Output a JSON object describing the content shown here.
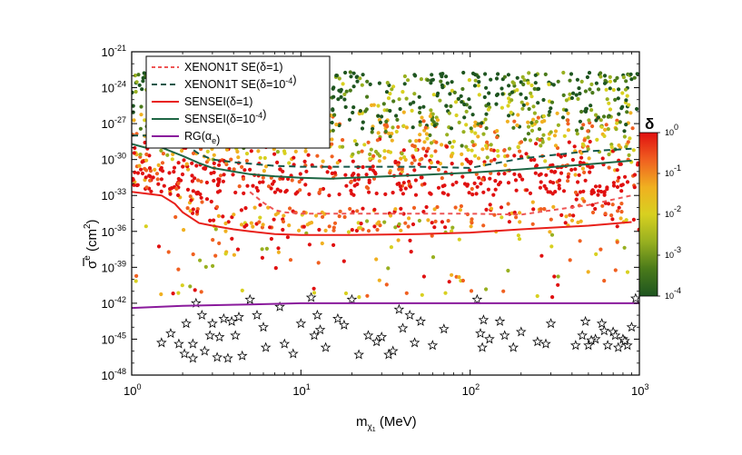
{
  "chart_data": {
    "type": "scatter",
    "title": "",
    "xlabel": {
      "base": "m",
      "sub": "χ",
      "subsub": "1",
      "unit": " (MeV)"
    },
    "ylabel": {
      "base": "σ",
      "sup": "e",
      "unit": " (cm",
      "unit_sup": "2",
      "close": ")"
    },
    "x_scale": "log",
    "y_scale": "log",
    "xlim": [
      1,
      1000
    ],
    "ylim": [
      1e-48,
      1e-21
    ],
    "x_ticks": [
      {
        "value": 1,
        "mant": "10",
        "exp": "0"
      },
      {
        "value": 10,
        "mant": "10",
        "exp": "1"
      },
      {
        "value": 100,
        "mant": "10",
        "exp": "2"
      },
      {
        "value": 1000,
        "mant": "10",
        "exp": "3"
      }
    ],
    "y_ticks": [
      {
        "value": 1e-21,
        "mant": "10",
        "exp": "-21"
      },
      {
        "value": 1e-24,
        "mant": "10",
        "exp": "-24"
      },
      {
        "value": 1e-27,
        "mant": "10",
        "exp": "-27"
      },
      {
        "value": 1e-30,
        "mant": "10",
        "exp": "-30"
      },
      {
        "value": 1e-33,
        "mant": "10",
        "exp": "-33"
      },
      {
        "value": 1e-36,
        "mant": "10",
        "exp": "-36"
      },
      {
        "value": 1e-39,
        "mant": "10",
        "exp": "-39"
      },
      {
        "value": 1e-42,
        "mant": "10",
        "exp": "-42"
      },
      {
        "value": 1e-45,
        "mant": "10",
        "exp": "-45"
      },
      {
        "value": 1e-48,
        "mant": "10",
        "exp": "-48"
      }
    ],
    "legend_position": "top-left",
    "series": [
      {
        "name": "XENON1T SE(δ=1)",
        "label_parts": [
          {
            "t": "XENON1T SE(δ=1)"
          }
        ],
        "color": "#ee5555",
        "style": "dashed",
        "x": [
          5,
          6,
          7,
          8,
          10,
          15,
          20,
          30,
          50,
          100,
          200,
          500,
          900
        ],
        "y": [
          2e-33,
          2.5e-34,
          6e-35,
          4e-35,
          3e-35,
          3e-35,
          3e-35,
          3e-35,
          3e-35,
          3e-35,
          2.5e-35,
          1.6e-34,
          1e-33
        ]
      },
      {
        "name": "XENON1T SE(δ=10-4)",
        "label_parts": [
          {
            "t": "XENON1T SE(δ=10"
          },
          {
            "t": "-4",
            "sup": true
          },
          {
            "t": ")"
          }
        ],
        "color": "#14574a",
        "style": "dashed",
        "x": [
          1,
          1.5,
          2,
          2.5,
          3,
          4,
          5,
          7,
          10,
          20,
          50,
          100,
          200,
          500,
          900
        ],
        "y": [
          1e-28,
          1e-28,
          2.5e-29,
          3e-30,
          1e-30,
          6e-31,
          4.5e-31,
          3e-31,
          2.5e-31,
          2.5e-31,
          2.5e-31,
          2e-31,
          1.2e-30,
          5e-30,
          8e-30
        ]
      },
      {
        "name": "SENSEI(δ=1)",
        "label_parts": [
          {
            "t": "SENSEI(δ=1)"
          }
        ],
        "color": "#e8201a",
        "style": "solid",
        "x": [
          1,
          1.5,
          1.8,
          2,
          2.5,
          3,
          4,
          5,
          7,
          10,
          20,
          50,
          100,
          200,
          500,
          900
        ],
        "y": [
          2e-33,
          1e-33,
          2e-34,
          4e-35,
          5e-36,
          3e-36,
          1.5e-36,
          1e-36,
          6e-37,
          5e-37,
          5e-37,
          6e-37,
          8e-37,
          1.5e-36,
          3e-36,
          6e-36
        ]
      },
      {
        "name": "SENSEI(δ=10-4)",
        "label_parts": [
          {
            "t": "SENSEI(δ=10"
          },
          {
            "t": "-4",
            "sup": true
          },
          {
            "t": ")"
          }
        ],
        "color": "#1e6644",
        "style": "solid",
        "x": [
          1,
          1.2,
          1.5,
          2,
          2.5,
          3,
          4,
          5,
          7,
          10,
          15,
          20,
          50,
          100,
          200,
          500,
          900
        ],
        "y": [
          2e-29,
          1e-29,
          1e-29,
          2e-30,
          5e-31,
          2e-31,
          1e-31,
          6e-32,
          4e-32,
          3e-32,
          2.5e-32,
          3e-32,
          5e-32,
          8e-32,
          1.5e-31,
          4e-31,
          8e-31
        ]
      },
      {
        "name": "RG(αe)",
        "label_parts": [
          {
            "t": "RG(α"
          },
          {
            "t": "e",
            "sub": true
          },
          {
            "t": ")"
          }
        ],
        "color": "#8a1a9c",
        "style": "solid",
        "x": [
          1,
          2,
          5,
          10,
          20,
          50,
          100,
          300,
          1000
        ],
        "y": [
          4e-43,
          6e-43,
          8e-43,
          1e-42,
          1e-42,
          1e-42,
          1e-42,
          1e-42,
          1e-42
        ]
      }
    ],
    "points_note": "colored dots: scatter of allowed models colored by δ (log scale from 1e-4 to 1); stars: models excluded",
    "colorbar": {
      "label": "δ",
      "scale": "log",
      "range": [
        0.0001,
        1
      ],
      "ticks": [
        {
          "value": 1,
          "mant": "10",
          "exp": "0"
        },
        {
          "value": 0.1,
          "mant": "10",
          "exp": "-1"
        },
        {
          "value": 0.01,
          "mant": "10",
          "exp": "-2"
        },
        {
          "value": 0.001,
          "mant": "10",
          "exp": "-3"
        },
        {
          "value": 0.0001,
          "mant": "10",
          "exp": "-4"
        }
      ],
      "colors": [
        "#e01010",
        "#f06020",
        "#f0b020",
        "#d8d020",
        "#98b020",
        "#4a7a1a",
        "#1e5520"
      ]
    },
    "star_points": {
      "x": [
        2.3,
        2.3,
        2.4,
        2.1,
        2.6,
        2.7,
        2.9,
        3.0,
        3.2,
        3.3,
        3.5,
        3.7,
        3.9,
        4.1,
        4.3,
        4.5,
        5.0,
        5.5,
        6.2,
        7.5,
        11.5,
        12.0,
        12.5,
        13.0,
        14.0,
        16.5,
        18.0,
        20.0,
        22.0,
        25.0,
        28.0,
        30.0,
        33.0,
        38.0,
        40.0,
        44.0,
        47.0,
        51.0,
        110.0,
        115.0,
        118.0,
        120.0,
        130.0,
        160.0,
        180.0,
        280.0,
        420.0,
        460.0,
        480.0,
        500.0,
        550.0,
        600.0,
        650.0,
        700.0,
        750.0,
        800.0,
        850.0,
        900.0,
        950.0,
        1.5,
        1.7,
        1.9,
        2.05,
        6.0,
        8.0,
        9.0,
        10.0,
        35.0,
        60.0,
        70.0,
        150.0,
        200.0,
        250.0,
        300.0,
        520.0,
        620.0,
        720.0,
        820.0
      ],
      "y": [
        2.5e-47,
        4e-46,
        1e-42,
        2e-44,
        1e-43,
        1e-46,
        2e-45,
        2e-44,
        3e-47,
        1.5e-45,
        5e-44,
        2.5e-47,
        3e-44,
        2e-45,
        7e-44,
        4e-47,
        2e-42,
        1e-43,
        2e-46,
        5e-43,
        3e-42,
        2e-45,
        1e-43,
        6e-45,
        2e-46,
        5e-44,
        1.5e-44,
        2e-42,
        5e-47,
        2e-45,
        6e-46,
        1.5e-45,
        5e-47,
        3e-43,
        8e-45,
        1e-43,
        5e-46,
        3e-44,
        2e-42,
        3e-45,
        2e-46,
        4e-44,
        1e-45,
        2e-45,
        2e-46,
        4e-46,
        3e-46,
        2e-45,
        3e-44,
        3e-46,
        1e-45,
        2e-44,
        3e-46,
        4e-45,
        2e-46,
        1e-45,
        3e-46,
        1e-44,
        2.5e-42,
        5e-46,
        3e-45,
        4e-46,
        6e-47,
        1e-44,
        4e-46,
        6e-47,
        2e-44,
        1e-46,
        3e-46,
        7e-45,
        3e-44,
        4e-45,
        6e-46,
        2e-44,
        8e-46,
        5e-45,
        2e-45,
        7e-46
      ]
    }
  }
}
